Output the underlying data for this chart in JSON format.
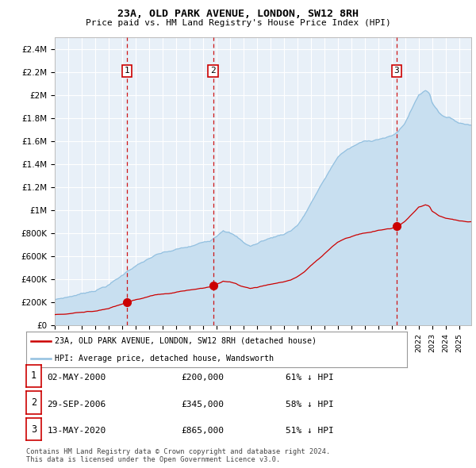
{
  "title": "23A, OLD PARK AVENUE, LONDON, SW12 8RH",
  "subtitle": "Price paid vs. HM Land Registry's House Price Index (HPI)",
  "ylim": [
    0,
    2500000
  ],
  "yticks": [
    0,
    200000,
    400000,
    600000,
    800000,
    1000000,
    1200000,
    1400000,
    1600000,
    1800000,
    2000000,
    2200000,
    2400000
  ],
  "ytick_labels": [
    "£0",
    "£200K",
    "£400K",
    "£600K",
    "£800K",
    "£1M",
    "£1.2M",
    "£1.4M",
    "£1.6M",
    "£1.8M",
    "£2M",
    "£2.2M",
    "£2.4M"
  ],
  "hpi_color": "#92c0e0",
  "hpi_fill_color": "#c8dff0",
  "price_color": "#cc0000",
  "vline_color": "#cc0000",
  "plot_bg": "#e8f0f8",
  "grid_color": "#ffffff",
  "sale_dates": [
    2000.34,
    2006.75,
    2020.37
  ],
  "sale_prices": [
    200000,
    345000,
    865000
  ],
  "sale_labels": [
    "1",
    "2",
    "3"
  ],
  "annotation_rows": [
    {
      "label": "1",
      "date": "02-MAY-2000",
      "price": "£200,000",
      "pct": "61% ↓ HPI"
    },
    {
      "label": "2",
      "date": "29-SEP-2006",
      "price": "£345,000",
      "pct": "58% ↓ HPI"
    },
    {
      "label": "3",
      "date": "13-MAY-2020",
      "price": "£865,000",
      "pct": "51% ↓ HPI"
    }
  ],
  "legend_line1": "23A, OLD PARK AVENUE, LONDON, SW12 8RH (detached house)",
  "legend_line2": "HPI: Average price, detached house, Wandsworth",
  "footer": "Contains HM Land Registry data © Crown copyright and database right 2024.\nThis data is licensed under the Open Government Licence v3.0.",
  "start_year": 1995.0,
  "end_year": 2025.9
}
